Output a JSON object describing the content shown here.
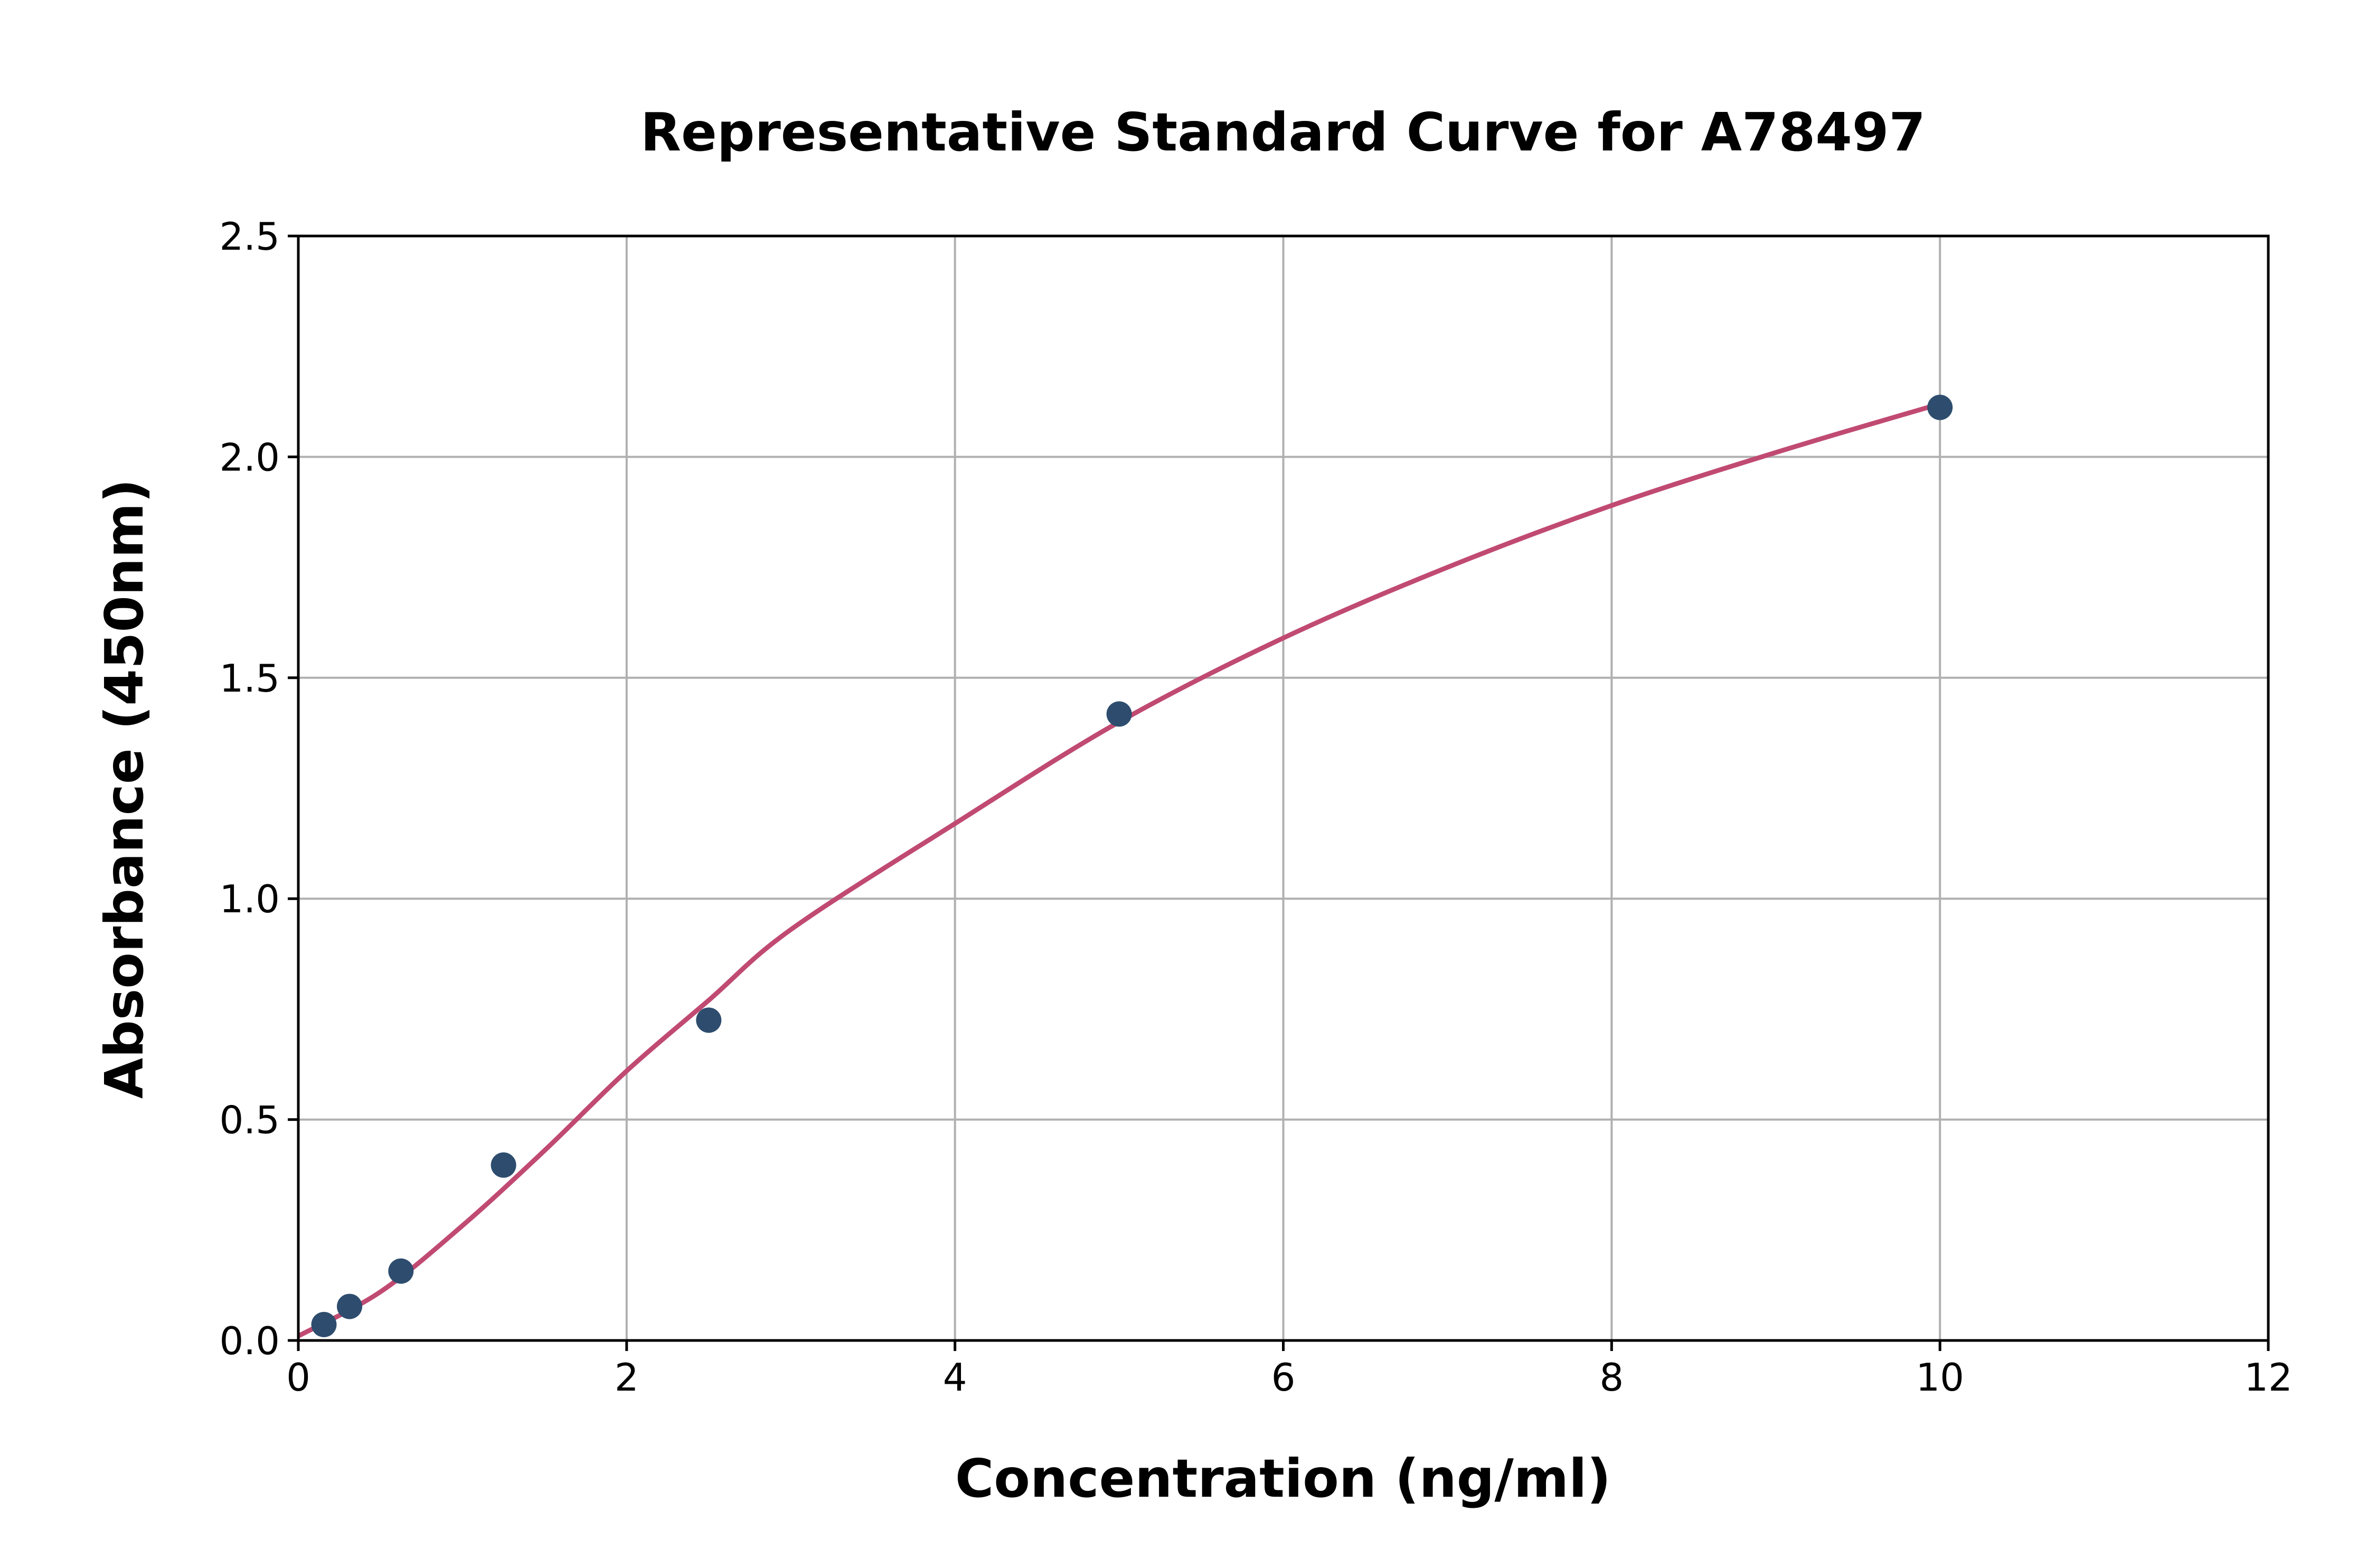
{
  "chart_data": {
    "type": "scatter",
    "title": "Representative Standard Curve for A78497",
    "xlabel": "Concentration (ng/ml)",
    "ylabel": "Absorbance (450nm)",
    "xlim": [
      0,
      12
    ],
    "ylim": [
      0,
      2.5
    ],
    "xticks": [
      0,
      2,
      4,
      6,
      8,
      10,
      12
    ],
    "yticks": [
      0.0,
      0.5,
      1.0,
      1.5,
      2.0,
      2.5
    ],
    "xtick_labels": [
      "0",
      "2",
      "4",
      "6",
      "8",
      "10",
      "12"
    ],
    "ytick_labels": [
      "0.0",
      "0.5",
      "1.0",
      "1.5",
      "2.0",
      "2.5"
    ],
    "grid": true,
    "points": {
      "x": [
        0.156,
        0.312,
        0.625,
        1.25,
        2.5,
        5,
        10
      ],
      "y": [
        0.036,
        0.077,
        0.157,
        0.397,
        0.725,
        1.418,
        2.112
      ],
      "color": "#2e4d6e"
    },
    "fit_curve": {
      "x": [
        0,
        0.5,
        1,
        1.5,
        2,
        2.5,
        3,
        4,
        5,
        6,
        7,
        8,
        9,
        10
      ],
      "y": [
        0.01,
        0.11,
        0.26,
        0.43,
        0.61,
        0.77,
        0.93,
        1.17,
        1.4,
        1.59,
        1.75,
        1.89,
        2.01,
        2.12
      ],
      "color": "#c04a72"
    }
  }
}
